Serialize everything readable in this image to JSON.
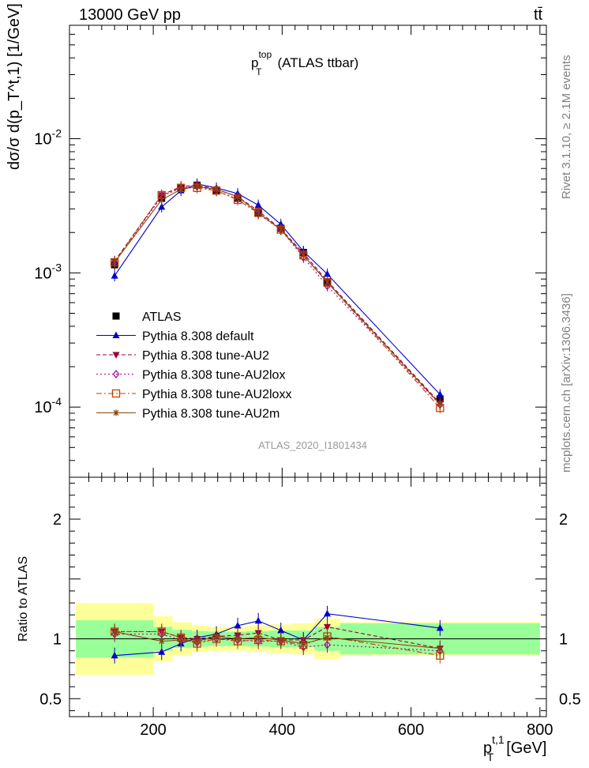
{
  "header": {
    "energy_label": "13000 GeV pp",
    "process_label": "tt̄"
  },
  "side_labels": {
    "version": "Rivet 3.1.10, ≥ 2.1M events",
    "source": "mcplots.cern.ch [arXiv:1306.3436]"
  },
  "chart_data": [
    {
      "type": "line",
      "title": "p_T^top (ATLAS ttbar)",
      "ylabel": "dσ/σ d(p_T^t,1) [1/GeV]",
      "yscale": "log",
      "ylim": [
        3e-05,
        0.07
      ],
      "xlim": [
        70,
        810
      ],
      "y_ticks": [
        "10^-4",
        "10^-3",
        "10^-2"
      ],
      "watermark": "ATLAS_2020_I1801434",
      "legend_position": "lower-left",
      "x": [
        140,
        213,
        243,
        268,
        298,
        331,
        363,
        398,
        433,
        470,
        645
      ],
      "series": [
        {
          "name": "ATLAS",
          "color": "#000000",
          "marker": "square",
          "values": [
            0.00115,
            0.0036,
            0.0043,
            0.0045,
            0.0041,
            0.0036,
            0.0028,
            0.00215,
            0.00142,
            0.00084,
            0.000115
          ]
        },
        {
          "name": "Pythia 8.308 default",
          "color": "#0000cc",
          "marker": "triangle-up",
          "dash": "solid",
          "values": [
            0.00095,
            0.0031,
            0.0041,
            0.0046,
            0.0043,
            0.0039,
            0.0032,
            0.0023,
            0.00145,
            0.00098,
            0.000124
          ]
        },
        {
          "name": "Pythia 8.308 tune-AU2",
          "color": "#990033",
          "marker": "triangle-down",
          "dash": "dash",
          "values": [
            0.00122,
            0.0038,
            0.0044,
            0.0045,
            0.0042,
            0.0037,
            0.0029,
            0.00212,
            0.0014,
            0.00087,
            0.000107
          ]
        },
        {
          "name": "Pythia 8.308 tune-AU2lox",
          "color": "#aa0099",
          "marker": "diamond-open",
          "dash": "dot",
          "values": [
            0.0012,
            0.0037,
            0.0043,
            0.0044,
            0.0041,
            0.00355,
            0.00275,
            0.0021,
            0.0013,
            0.0008,
            0.000104
          ]
        },
        {
          "name": "Pythia 8.308 tune-AU2loxx",
          "color": "#bb4400",
          "marker": "square-open",
          "dash": "dashdot",
          "values": [
            0.0012,
            0.0038,
            0.0043,
            0.0043,
            0.0041,
            0.0035,
            0.0028,
            0.0021,
            0.00135,
            0.00085,
            9.85e-05
          ]
        },
        {
          "name": "Pythia 8.308 tune-AU2m",
          "color": "#884411",
          "marker": "star",
          "dash": "solid",
          "values": [
            0.0012,
            0.0035,
            0.0042,
            0.0044,
            0.0042,
            0.0037,
            0.0028,
            0.0021,
            0.00135,
            0.00085,
            0.000105
          ]
        }
      ]
    },
    {
      "type": "line",
      "ylabel": "Ratio to ATLAS",
      "xlabel": "p_T^t,1 [GeV]",
      "ylim": [
        0.35,
        2.35
      ],
      "xlim": [
        70,
        810
      ],
      "y_ticks": [
        0.5,
        1,
        2
      ],
      "x_ticks": [
        200,
        400,
        600,
        800
      ],
      "reference_line": 1,
      "uncertainty_bands": {
        "bin_edges": [
          80,
          200,
          230,
          260,
          285,
          315,
          345,
          380,
          415,
          450,
          490,
          800
        ],
        "inner_color": "#99ff99",
        "outer_color": "#ffff99",
        "inner_halfwidth": [
          0.155,
          0.1,
          0.075,
          0.065,
          0.06,
          0.06,
          0.065,
          0.07,
          0.07,
          0.1,
          0.13
        ],
        "outer_halfwidth": [
          0.3,
          0.19,
          0.14,
          0.11,
          0.1,
          0.1,
          0.11,
          0.12,
          0.13,
          0.17,
          0.14
        ]
      },
      "x": [
        140,
        213,
        243,
        268,
        298,
        331,
        363,
        398,
        433,
        470,
        645
      ],
      "series": [
        {
          "name": "Pythia 8.308 default",
          "color": "#0000cc",
          "marker": "triangle-up",
          "dash": "solid",
          "values": [
            0.86,
            0.89,
            0.96,
            1.01,
            1.04,
            1.11,
            1.15,
            1.07,
            0.99,
            1.21,
            1.09
          ]
        },
        {
          "name": "Pythia 8.308 tune-AU2",
          "color": "#990033",
          "marker": "triangle-down",
          "dash": "dash",
          "values": [
            1.06,
            1.06,
            1.01,
            1.0,
            1.02,
            1.03,
            1.05,
            0.99,
            0.99,
            1.1,
            0.92
          ]
        },
        {
          "name": "Pythia 8.308 tune-AU2lox",
          "color": "#aa0099",
          "marker": "diamond-open",
          "dash": "dot",
          "values": [
            1.04,
            1.04,
            0.99,
            0.97,
            1.0,
            0.99,
            0.98,
            0.98,
            0.93,
            0.95,
            0.9
          ]
        },
        {
          "name": "Pythia 8.308 tune-AU2loxx",
          "color": "#bb4400",
          "marker": "square-open",
          "dash": "dashdot",
          "values": [
            1.06,
            1.06,
            1.01,
            0.96,
            1.0,
            0.98,
            0.99,
            0.98,
            0.95,
            1.02,
            0.86
          ]
        },
        {
          "name": "Pythia 8.308 tune-AU2m",
          "color": "#884411",
          "marker": "star",
          "dash": "solid",
          "values": [
            1.06,
            0.98,
            0.99,
            0.98,
            1.02,
            1.0,
            1.01,
            0.99,
            0.96,
            1.01,
            0.92
          ]
        }
      ]
    }
  ]
}
